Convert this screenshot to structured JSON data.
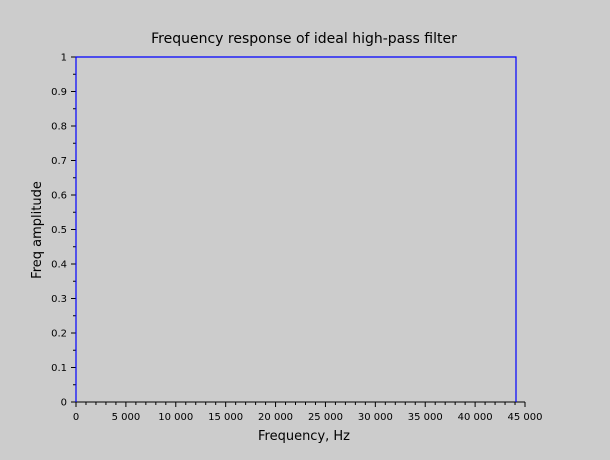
{
  "chart_data": {
    "type": "line",
    "title": "Frequency response of ideal high-pass filter",
    "xlabel": "Frequency, Hz",
    "ylabel": "Freq amplitude",
    "xlim": [
      0,
      44100
    ],
    "ylim": [
      0,
      1
    ],
    "grid": false,
    "series": [
      {
        "color": "#0000ff",
        "x": [
          0,
          0,
          44100,
          44100
        ],
        "y": [
          0,
          1,
          1,
          0
        ]
      }
    ],
    "x_ticks": [
      0,
      5000,
      10000,
      15000,
      20000,
      25000,
      30000,
      35000,
      40000,
      45000
    ],
    "x_tick_labels": [
      "0",
      "5 000",
      "10 000",
      "15 000",
      "20 000",
      "25 000",
      "30 000",
      "35 000",
      "40 000",
      "45 000"
    ],
    "y_ticks": [
      0,
      0.1,
      0.2,
      0.3,
      0.4,
      0.5,
      0.6,
      0.7,
      0.8,
      0.9,
      1
    ],
    "y_tick_labels": [
      "0",
      "0.1",
      "0.2",
      "0.3",
      "0.4",
      "0.5",
      "0.6",
      "0.7",
      "0.8",
      "0.9",
      "1"
    ]
  }
}
